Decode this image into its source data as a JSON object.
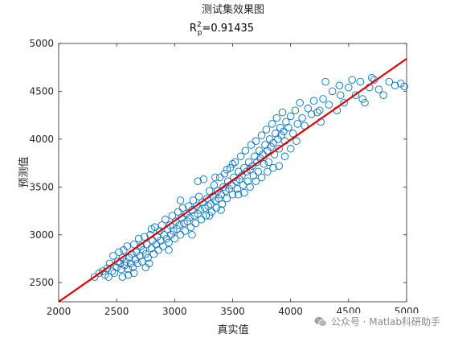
{
  "chart_data": {
    "type": "scatter",
    "title": "测试集效果图",
    "r2": {
      "base": "R",
      "sup": "2",
      "sub": "p",
      "text": "=0.91435"
    },
    "xlabel": "真实值",
    "ylabel": "预测值",
    "xlim": [
      2000,
      5000
    ],
    "ylim": [
      2300,
      5000
    ],
    "xticks": [
      "2000",
      "2500",
      "3000",
      "3500",
      "4000",
      "4500",
      "5000"
    ],
    "yticks": [
      "2500",
      "3000",
      "3500",
      "4000",
      "4500",
      "5000"
    ],
    "grid": false,
    "marker_color": "#0072BD",
    "line_color": "#E00000",
    "fit_line": {
      "x": [
        2000,
        5000
      ],
      "y": [
        2300,
        4840
      ]
    },
    "series": [
      {
        "points": [
          [
            2310,
            2560
          ],
          [
            2350,
            2600
          ],
          [
            2380,
            2620
          ],
          [
            2400,
            2580
          ],
          [
            2420,
            2650
          ],
          [
            2430,
            2560
          ],
          [
            2440,
            2700
          ],
          [
            2460,
            2620
          ],
          [
            2470,
            2780
          ],
          [
            2480,
            2600
          ],
          [
            2500,
            2660
          ],
          [
            2510,
            2720
          ],
          [
            2520,
            2820
          ],
          [
            2530,
            2700
          ],
          [
            2540,
            2640
          ],
          [
            2550,
            2760
          ],
          [
            2560,
            2840
          ],
          [
            2570,
            2680
          ],
          [
            2580,
            2720
          ],
          [
            2590,
            2880
          ],
          [
            2600,
            2640
          ],
          [
            2610,
            2760
          ],
          [
            2620,
            2700
          ],
          [
            2630,
            2800
          ],
          [
            2640,
            2660
          ],
          [
            2650,
            2900
          ],
          [
            2660,
            2740
          ],
          [
            2670,
            2820
          ],
          [
            2680,
            2700
          ],
          [
            2690,
            2960
          ],
          [
            2700,
            2780
          ],
          [
            2710,
            2880
          ],
          [
            2720,
            2720
          ],
          [
            2730,
            2840
          ],
          [
            2740,
            2980
          ],
          [
            2750,
            2800
          ],
          [
            2760,
            2900
          ],
          [
            2770,
            2760
          ],
          [
            2780,
            2700
          ],
          [
            2790,
            3000
          ],
          [
            2800,
            2860
          ],
          [
            2810,
            2940
          ],
          [
            2820,
            2800
          ],
          [
            2830,
            3080
          ],
          [
            2840,
            2900
          ],
          [
            2850,
            2980
          ],
          [
            2860,
            2840
          ],
          [
            2870,
            3040
          ],
          [
            2880,
            2940
          ],
          [
            2890,
            3100
          ],
          [
            2900,
            2880
          ],
          [
            2910,
            3000
          ],
          [
            2920,
            3160
          ],
          [
            2930,
            2960
          ],
          [
            2940,
            3060
          ],
          [
            2950,
            2920
          ],
          [
            2960,
            3100
          ],
          [
            2970,
            3000
          ],
          [
            2980,
            3200
          ],
          [
            2990,
            3040
          ],
          [
            3000,
            2960
          ],
          [
            3010,
            3140
          ],
          [
            3020,
            3060
          ],
          [
            3030,
            3240
          ],
          [
            3040,
            3100
          ],
          [
            3050,
            3000
          ],
          [
            3060,
            3180
          ],
          [
            3070,
            3280
          ],
          [
            3080,
            3120
          ],
          [
            3090,
            3040
          ],
          [
            3100,
            3220
          ],
          [
            3110,
            3140
          ],
          [
            3120,
            3300
          ],
          [
            3130,
            3180
          ],
          [
            3140,
            3080
          ],
          [
            3150,
            3260
          ],
          [
            3160,
            3360
          ],
          [
            3170,
            3200
          ],
          [
            3180,
            3120
          ],
          [
            3190,
            3300
          ],
          [
            3200,
            3220
          ],
          [
            3210,
            3400
          ],
          [
            3220,
            3260
          ],
          [
            3230,
            3160
          ],
          [
            3240,
            3340
          ],
          [
            3250,
            3580
          ],
          [
            3260,
            3280
          ],
          [
            3270,
            3200
          ],
          [
            3280,
            3380
          ],
          [
            3290,
            3300
          ],
          [
            3300,
            3460
          ],
          [
            3310,
            3320
          ],
          [
            3320,
            3240
          ],
          [
            3330,
            3400
          ],
          [
            3340,
            3520
          ],
          [
            3350,
            3360
          ],
          [
            3360,
            3280
          ],
          [
            3370,
            3460
          ],
          [
            3380,
            3380
          ],
          [
            3390,
            3600
          ],
          [
            3400,
            3420
          ],
          [
            3410,
            3320
          ],
          [
            3420,
            3500
          ],
          [
            3430,
            3640
          ],
          [
            3440,
            3460
          ],
          [
            3450,
            3380
          ],
          [
            3460,
            3560
          ],
          [
            3470,
            3480
          ],
          [
            3480,
            3700
          ],
          [
            3490,
            3520
          ],
          [
            3500,
            3420
          ],
          [
            3510,
            3600
          ],
          [
            3520,
            3760
          ],
          [
            3530,
            3560
          ],
          [
            3540,
            3480
          ],
          [
            3550,
            3660
          ],
          [
            3560,
            3580
          ],
          [
            3570,
            3820
          ],
          [
            3580,
            3620
          ],
          [
            3590,
            3520
          ],
          [
            3600,
            3700
          ],
          [
            3610,
            3880
          ],
          [
            3620,
            3660
          ],
          [
            3630,
            3560
          ],
          [
            3640,
            3760
          ],
          [
            3650,
            3680
          ],
          [
            3660,
            3940
          ],
          [
            3670,
            3720
          ],
          [
            3680,
            3620
          ],
          [
            3690,
            3820
          ],
          [
            3700,
            3980
          ],
          [
            3710,
            3760
          ],
          [
            3720,
            3660
          ],
          [
            3730,
            3880
          ],
          [
            3740,
            3800
          ],
          [
            3750,
            4040
          ],
          [
            3760,
            3840
          ],
          [
            3770,
            3740
          ],
          [
            3780,
            3940
          ],
          [
            3790,
            4100
          ],
          [
            3800,
            3880
          ],
          [
            3810,
            3760
          ],
          [
            3820,
            4000
          ],
          [
            3830,
            3920
          ],
          [
            3840,
            4160
          ],
          [
            3850,
            3960
          ],
          [
            3860,
            3840
          ],
          [
            3870,
            4060
          ],
          [
            3880,
            4220
          ],
          [
            3890,
            4000
          ],
          [
            3900,
            3900
          ],
          [
            3910,
            4120
          ],
          [
            3920,
            4040
          ],
          [
            3930,
            4280
          ],
          [
            3940,
            4080
          ],
          [
            3950,
            3980
          ],
          [
            3960,
            4180
          ],
          [
            3980,
            4120
          ],
          [
            4000,
            4240
          ],
          [
            4020,
            4060
          ],
          [
            4040,
            4300
          ],
          [
            4060,
            4160
          ],
          [
            4080,
            4380
          ],
          [
            4100,
            4220
          ],
          [
            4120,
            4140
          ],
          [
            4150,
            4320
          ],
          [
            4180,
            4260
          ],
          [
            4200,
            4400
          ],
          [
            4230,
            4280
          ],
          [
            4260,
            4180
          ],
          [
            4280,
            4420
          ],
          [
            4300,
            4600
          ],
          [
            4330,
            4360
          ],
          [
            4360,
            4500
          ],
          [
            4400,
            4300
          ],
          [
            4430,
            4460
          ],
          [
            4460,
            4380
          ],
          [
            4500,
            4540
          ],
          [
            4530,
            4620
          ],
          [
            4560,
            4460
          ],
          [
            4600,
            4600
          ],
          [
            4640,
            4380
          ],
          [
            4680,
            4540
          ],
          [
            4720,
            4620
          ],
          [
            4760,
            4520
          ],
          [
            4800,
            4460
          ],
          [
            4850,
            4600
          ],
          [
            4900,
            4560
          ],
          [
            4950,
            4580
          ],
          [
            4980,
            4550
          ],
          [
            4700,
            4640
          ],
          [
            4620,
            4420
          ],
          [
            4420,
            4560
          ],
          [
            4250,
            4300
          ],
          [
            3200,
            3560
          ],
          [
            3350,
            3600
          ],
          [
            3050,
            3360
          ],
          [
            2800,
            3060
          ],
          [
            3600,
            3440
          ],
          [
            3700,
            3560
          ],
          [
            3850,
            3700
          ],
          [
            3900,
            3720
          ],
          [
            3950,
            3820
          ],
          [
            4000,
            3900
          ],
          [
            4050,
            3980
          ],
          [
            3500,
            3740
          ],
          [
            3450,
            3680
          ],
          [
            3300,
            3200
          ],
          [
            3150,
            3000
          ],
          [
            2950,
            2840
          ],
          [
            2750,
            2660
          ],
          [
            2650,
            2600
          ],
          [
            2600,
            2580
          ],
          [
            2550,
            2560
          ],
          [
            3400,
            3260
          ],
          [
            3550,
            3420
          ],
          [
            3650,
            3500
          ],
          [
            3750,
            3600
          ],
          [
            3800,
            3660
          ]
        ]
      }
    ]
  },
  "watermark": {
    "text": "公众号 · Matlab科研助手",
    "icon": "wechat-icon"
  }
}
